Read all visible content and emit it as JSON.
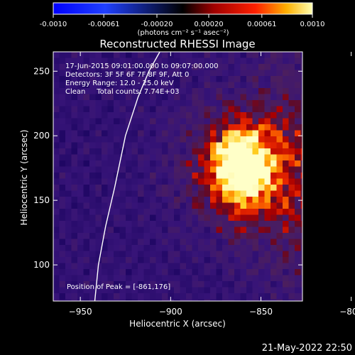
{
  "colorbar": {
    "tick_labels": [
      "-0.0010",
      "-0.00061",
      "-0.00020",
      "0.00020",
      "0.00061",
      "0.0010"
    ],
    "tick_values": [
      -0.001,
      -0.00061,
      -0.0002,
      0.0002,
      0.00061,
      0.001
    ],
    "range": [
      -0.001,
      0.001
    ],
    "unit_label": "(photons cm⁻² s⁻¹ asec⁻²)"
  },
  "chart_data": {
    "type": "heatmap",
    "title": "Reconstructed RHESSI Image",
    "xlabel": "Heliocentric X (arcsec)",
    "ylabel": "Heliocentric Y (arcsec)",
    "xlim": [
      -965,
      -827
    ],
    "ylim": [
      72,
      265
    ],
    "x_ticks": [
      -950,
      -900,
      -850,
      -800
    ],
    "x_tick_labels": [
      "−950",
      "−900",
      "−850",
      "−800"
    ],
    "y_ticks": [
      100,
      150,
      200,
      250
    ],
    "y_tick_labels": [
      "100",
      "150",
      "200",
      "250"
    ],
    "peak": {
      "x": -861,
      "y": 176
    },
    "limb_curve": [
      [
        -942,
        72
      ],
      [
        -940,
        100
      ],
      [
        -936,
        130
      ],
      [
        -931,
        160
      ],
      [
        -925,
        200
      ],
      [
        -918,
        230
      ],
      [
        -912,
        250
      ],
      [
        -906,
        265
      ]
    ],
    "annotations": [
      "17-Jun-2015 09:01:00.000 to 09:07:00.000",
      "Detectors: 3F 5F 6F 7F 8F 9F, Att 0",
      "Energy Range: 12.0 - 25.0 keV",
      "Clean     Total counts: 7.74E+03"
    ],
    "peak_label": "Position of Peak = [-861,176]"
  },
  "footer": {
    "date": "21-May-2022 22:50"
  }
}
